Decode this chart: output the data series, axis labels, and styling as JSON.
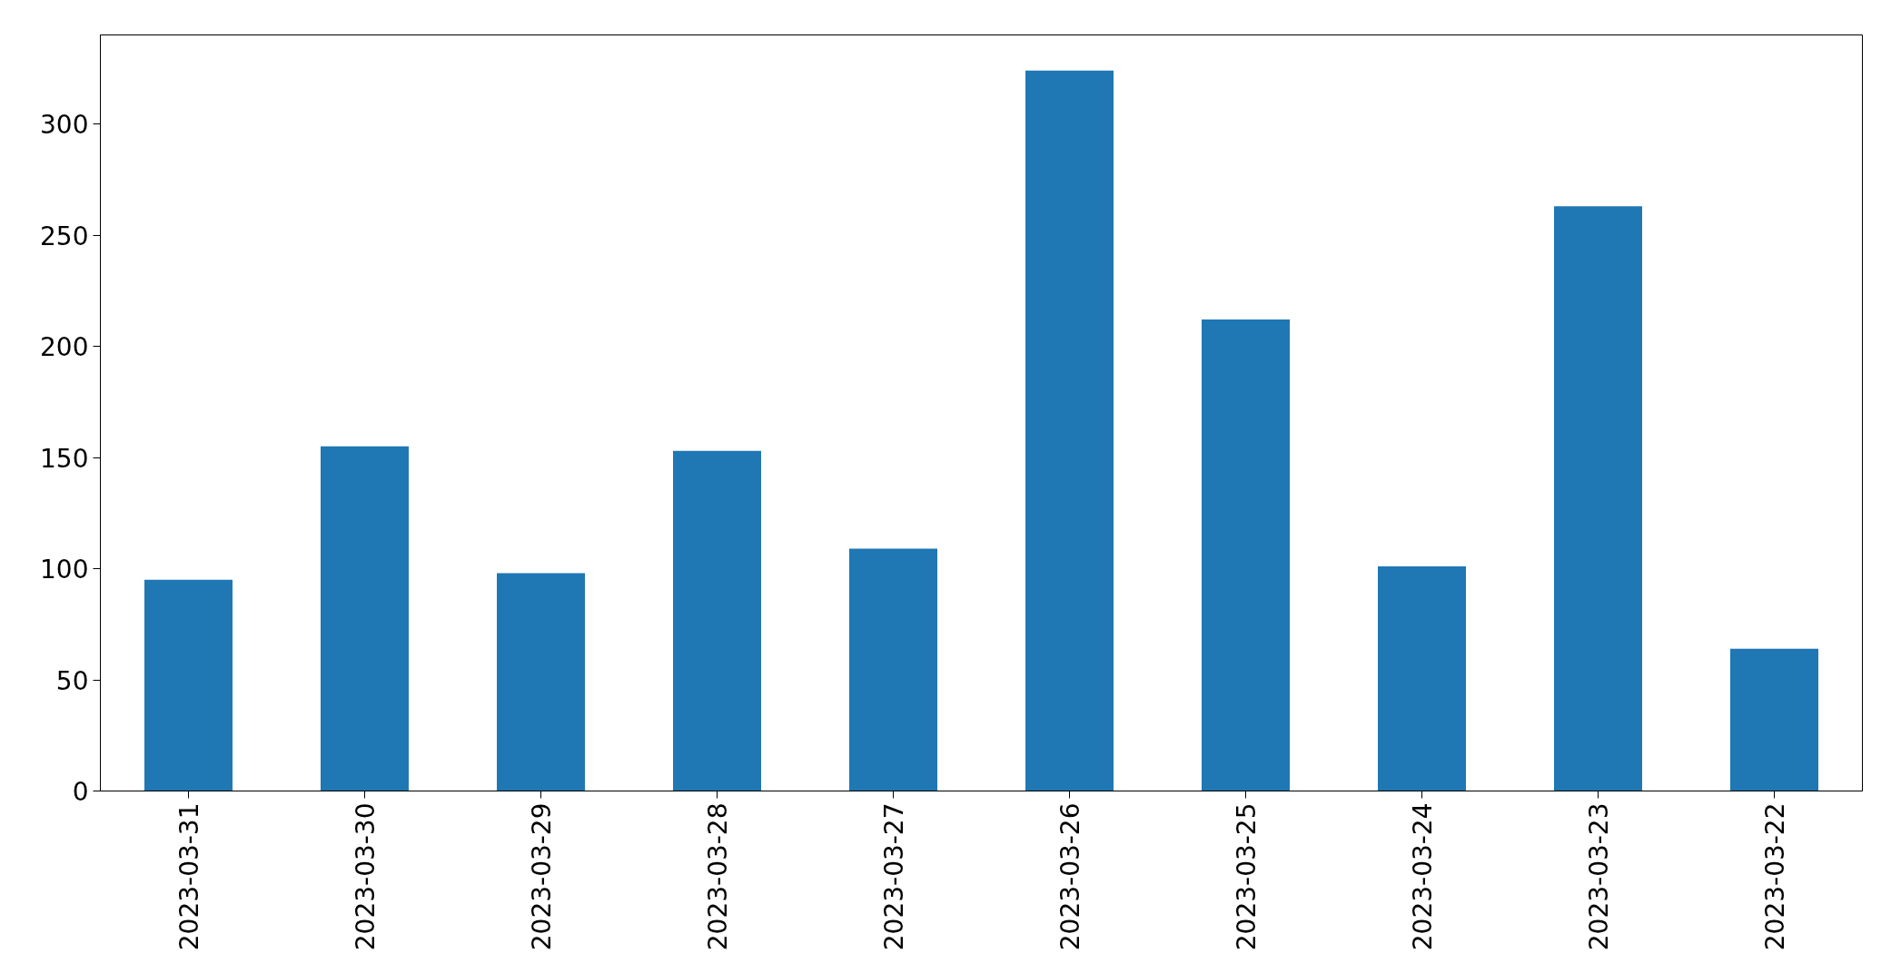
{
  "chart_data": {
    "type": "bar",
    "categories": [
      "2023-03-31",
      "2023-03-30",
      "2023-03-29",
      "2023-03-28",
      "2023-03-27",
      "2023-03-26",
      "2023-03-25",
      "2023-03-24",
      "2023-03-23",
      "2023-03-22"
    ],
    "values": [
      95,
      155,
      98,
      153,
      109,
      324,
      212,
      101,
      263,
      64
    ],
    "color": "#1f77b4",
    "ylim": [
      0,
      340
    ],
    "yticks": [
      0,
      50,
      100,
      150,
      200,
      250,
      300
    ],
    "grid": false
  }
}
